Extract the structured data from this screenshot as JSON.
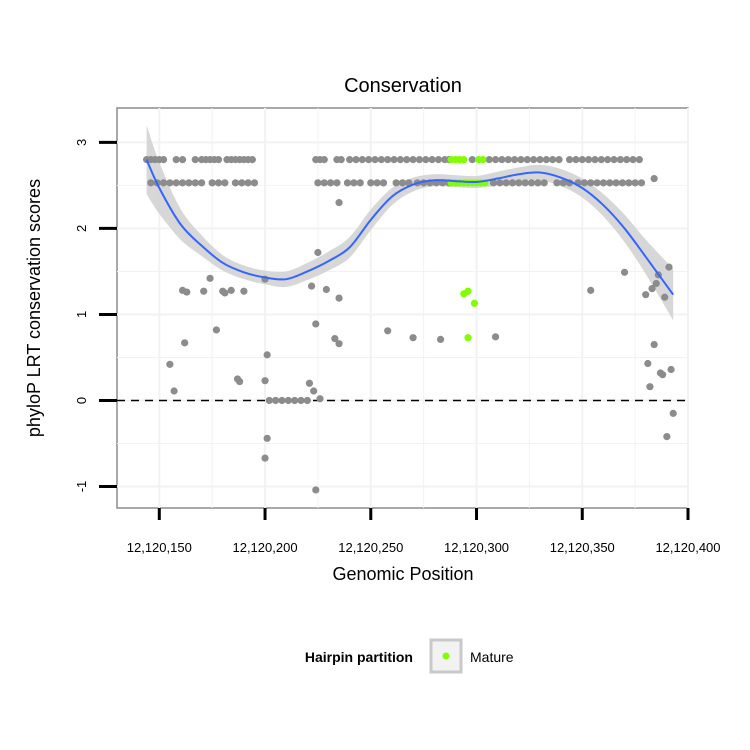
{
  "chart_data": {
    "type": "scatter",
    "title": "Conservation",
    "xlabel": "Genomic Position",
    "ylabel": "phyloP LRT conservation scores",
    "xlim": [
      12120130,
      12120400
    ],
    "ylim": [
      -1.25,
      3.4
    ],
    "x_ticks": [
      12120150,
      12120200,
      12120250,
      12120300,
      12120350,
      12120400
    ],
    "x_tick_labels": [
      "12,120,150",
      "12,120,200",
      "12,120,250",
      "12,120,300",
      "12,120,350",
      "12,120,400"
    ],
    "y_ticks": [
      -1,
      0,
      1,
      2,
      3
    ],
    "y_tick_labels": [
      "-1",
      "0",
      "1",
      "2",
      "3"
    ],
    "grid": true,
    "reference_line": {
      "y": 0,
      "style": "dashed"
    },
    "colors": {
      "other": "#8c8c8c",
      "mature": "#7fff00",
      "smooth": "#3366ff",
      "band": "#d3d3d3",
      "grid": "#f2f2f2"
    },
    "legend": {
      "title": "Hairpin partition",
      "position": "bottom",
      "entries": [
        {
          "label": "Mature",
          "color": "#7fff00"
        }
      ]
    },
    "series": [
      {
        "name": "",
        "points": [
          [
            12120144,
            2.8
          ],
          [
            12120146,
            2.8
          ],
          [
            12120148,
            2.8
          ],
          [
            12120150,
            2.8
          ],
          [
            12120152,
            2.8
          ],
          [
            12120158,
            2.8
          ],
          [
            12120161,
            2.8
          ],
          [
            12120167,
            2.8
          ],
          [
            12120170,
            2.8
          ],
          [
            12120172,
            2.8
          ],
          [
            12120174,
            2.8
          ],
          [
            12120176,
            2.8
          ],
          [
            12120178,
            2.8
          ],
          [
            12120182,
            2.8
          ],
          [
            12120184,
            2.8
          ],
          [
            12120186,
            2.8
          ],
          [
            12120188,
            2.8
          ],
          [
            12120190,
            2.8
          ],
          [
            12120192,
            2.8
          ],
          [
            12120194,
            2.8
          ],
          [
            12120224,
            2.8
          ],
          [
            12120226,
            2.8
          ],
          [
            12120228,
            2.8
          ],
          [
            12120234,
            2.8
          ],
          [
            12120236,
            2.8
          ],
          [
            12120240,
            2.8
          ],
          [
            12120243,
            2.8
          ],
          [
            12120246,
            2.8
          ],
          [
            12120249,
            2.8
          ],
          [
            12120252,
            2.8
          ],
          [
            12120255,
            2.8
          ],
          [
            12120258,
            2.8
          ],
          [
            12120261,
            2.8
          ],
          [
            12120264,
            2.8
          ],
          [
            12120267,
            2.8
          ],
          [
            12120270,
            2.8
          ],
          [
            12120273,
            2.8
          ],
          [
            12120276,
            2.8
          ],
          [
            12120279,
            2.8
          ],
          [
            12120282,
            2.8
          ],
          [
            12120285,
            2.8
          ],
          [
            12120287,
            2.8
          ],
          [
            12120298,
            2.8
          ],
          [
            12120306,
            2.8
          ],
          [
            12120309,
            2.8
          ],
          [
            12120312,
            2.8
          ],
          [
            12120315,
            2.8
          ],
          [
            12120318,
            2.8
          ],
          [
            12120321,
            2.8
          ],
          [
            12120324,
            2.8
          ],
          [
            12120327,
            2.8
          ],
          [
            12120330,
            2.8
          ],
          [
            12120333,
            2.8
          ],
          [
            12120336,
            2.8
          ],
          [
            12120339,
            2.8
          ],
          [
            12120344,
            2.8
          ],
          [
            12120347,
            2.8
          ],
          [
            12120350,
            2.8
          ],
          [
            12120353,
            2.8
          ],
          [
            12120356,
            2.8
          ],
          [
            12120359,
            2.8
          ],
          [
            12120362,
            2.8
          ],
          [
            12120365,
            2.8
          ],
          [
            12120368,
            2.8
          ],
          [
            12120371,
            2.8
          ],
          [
            12120374,
            2.8
          ],
          [
            12120377,
            2.8
          ],
          [
            12120146,
            2.53
          ],
          [
            12120149,
            2.53
          ],
          [
            12120152,
            2.53
          ],
          [
            12120155,
            2.53
          ],
          [
            12120158,
            2.53
          ],
          [
            12120161,
            2.53
          ],
          [
            12120164,
            2.53
          ],
          [
            12120167,
            2.53
          ],
          [
            12120170,
            2.53
          ],
          [
            12120175,
            2.53
          ],
          [
            12120178,
            2.53
          ],
          [
            12120181,
            2.53
          ],
          [
            12120186,
            2.53
          ],
          [
            12120189,
            2.53
          ],
          [
            12120192,
            2.53
          ],
          [
            12120195,
            2.53
          ],
          [
            12120225,
            2.53
          ],
          [
            12120228,
            2.53
          ],
          [
            12120231,
            2.53
          ],
          [
            12120234,
            2.53
          ],
          [
            12120239,
            2.53
          ],
          [
            12120242,
            2.53
          ],
          [
            12120245,
            2.53
          ],
          [
            12120250,
            2.53
          ],
          [
            12120253,
            2.53
          ],
          [
            12120256,
            2.53
          ],
          [
            12120262,
            2.53
          ],
          [
            12120265,
            2.53
          ],
          [
            12120268,
            2.53
          ],
          [
            12120272,
            2.53
          ],
          [
            12120275,
            2.53
          ],
          [
            12120278,
            2.53
          ],
          [
            12120281,
            2.53
          ],
          [
            12120284,
            2.53
          ],
          [
            12120287,
            2.53
          ],
          [
            12120308,
            2.53
          ],
          [
            12120311,
            2.53
          ],
          [
            12120314,
            2.53
          ],
          [
            12120317,
            2.53
          ],
          [
            12120320,
            2.53
          ],
          [
            12120323,
            2.53
          ],
          [
            12120326,
            2.53
          ],
          [
            12120329,
            2.53
          ],
          [
            12120332,
            2.53
          ],
          [
            12120338,
            2.53
          ],
          [
            12120341,
            2.53
          ],
          [
            12120344,
            2.53
          ],
          [
            12120348,
            2.53
          ],
          [
            12120351,
            2.53
          ],
          [
            12120354,
            2.53
          ],
          [
            12120357,
            2.53
          ],
          [
            12120360,
            2.53
          ],
          [
            12120363,
            2.53
          ],
          [
            12120366,
            2.53
          ],
          [
            12120369,
            2.53
          ],
          [
            12120372,
            2.53
          ],
          [
            12120375,
            2.53
          ],
          [
            12120378,
            2.53
          ],
          [
            12120235,
            2.3
          ],
          [
            12120384,
            2.58
          ],
          [
            12120225,
            1.72
          ],
          [
            12120200,
            1.41
          ],
          [
            12120222,
            1.33
          ],
          [
            12120174,
            1.42
          ],
          [
            12120184,
            1.28
          ],
          [
            12120190,
            1.27
          ],
          [
            12120181,
            1.25
          ],
          [
            12120180,
            1.27
          ],
          [
            12120161,
            1.28
          ],
          [
            12120163,
            1.26
          ],
          [
            12120171,
            1.27
          ],
          [
            12120229,
            1.29
          ],
          [
            12120235,
            1.19
          ],
          [
            12120224,
            0.89
          ],
          [
            12120177,
            0.82
          ],
          [
            12120258,
            0.81
          ],
          [
            12120233,
            0.72
          ],
          [
            12120235,
            0.66
          ],
          [
            12120270,
            0.73
          ],
          [
            12120283,
            0.71
          ],
          [
            12120309,
            0.74
          ],
          [
            12120162,
            0.67
          ],
          [
            12120155,
            0.42
          ],
          [
            12120157,
            0.11
          ],
          [
            12120187,
            0.25
          ],
          [
            12120188,
            0.22
          ],
          [
            12120200,
            0.23
          ],
          [
            12120201,
            0.53
          ],
          [
            12120221,
            0.2
          ],
          [
            12120223,
            0.11
          ],
          [
            12120226,
            0.02
          ],
          [
            12120202,
            0.0
          ],
          [
            12120205,
            0.0
          ],
          [
            12120208,
            0.0
          ],
          [
            12120211,
            0.0
          ],
          [
            12120214,
            0.0
          ],
          [
            12120217,
            0.0
          ],
          [
            12120220,
            0.0
          ],
          [
            12120201,
            -0.44
          ],
          [
            12120200,
            -0.67
          ],
          [
            12120224,
            -1.04
          ],
          [
            12120354,
            1.28
          ],
          [
            12120370,
            1.49
          ],
          [
            12120380,
            1.23
          ],
          [
            12120381,
            0.43
          ],
          [
            12120382,
            0.16
          ],
          [
            12120383,
            1.3
          ],
          [
            12120384,
            0.65
          ],
          [
            12120385,
            1.36
          ],
          [
            12120386,
            1.46
          ],
          [
            12120387,
            0.32
          ],
          [
            12120388,
            0.3
          ],
          [
            12120389,
            1.2
          ],
          [
            12120390,
            -0.42
          ],
          [
            12120391,
            1.55
          ],
          [
            12120392,
            0.36
          ],
          [
            12120393,
            -0.15
          ]
        ]
      },
      {
        "name": "Mature",
        "points": [
          [
            12120288,
            2.8
          ],
          [
            12120290,
            2.8
          ],
          [
            12120292,
            2.8
          ],
          [
            12120294,
            2.8
          ],
          [
            12120301,
            2.8
          ],
          [
            12120303,
            2.8
          ],
          [
            12120288,
            2.53
          ],
          [
            12120290,
            2.53
          ],
          [
            12120292,
            2.53
          ],
          [
            12120294,
            2.53
          ],
          [
            12120296,
            2.53
          ],
          [
            12120298,
            2.53
          ],
          [
            12120300,
            2.53
          ],
          [
            12120302,
            2.53
          ],
          [
            12120304,
            2.53
          ],
          [
            12120294,
            1.24
          ],
          [
            12120296,
            1.27
          ],
          [
            12120299,
            1.13
          ],
          [
            12120296,
            0.73
          ]
        ]
      }
    ],
    "smooth": {
      "x": [
        12120144,
        12120150,
        12120160,
        12120170,
        12120180,
        12120190,
        12120200,
        12120210,
        12120220,
        12120230,
        12120240,
        12120250,
        12120260,
        12120270,
        12120280,
        12120290,
        12120300,
        12120310,
        12120320,
        12120330,
        12120340,
        12120350,
        12120360,
        12120370,
        12120380,
        12120393
      ],
      "y": [
        2.8,
        2.47,
        2.05,
        1.8,
        1.6,
        1.49,
        1.43,
        1.41,
        1.5,
        1.62,
        1.78,
        2.1,
        2.37,
        2.51,
        2.56,
        2.55,
        2.54,
        2.58,
        2.63,
        2.65,
        2.59,
        2.47,
        2.27,
        2.0,
        1.67,
        1.23
      ],
      "se": [
        0.4,
        0.3,
        0.18,
        0.12,
        0.09,
        0.08,
        0.08,
        0.09,
        0.1,
        0.11,
        0.12,
        0.12,
        0.1,
        0.08,
        0.07,
        0.07,
        0.07,
        0.08,
        0.08,
        0.09,
        0.1,
        0.11,
        0.13,
        0.16,
        0.2,
        0.3
      ]
    }
  }
}
